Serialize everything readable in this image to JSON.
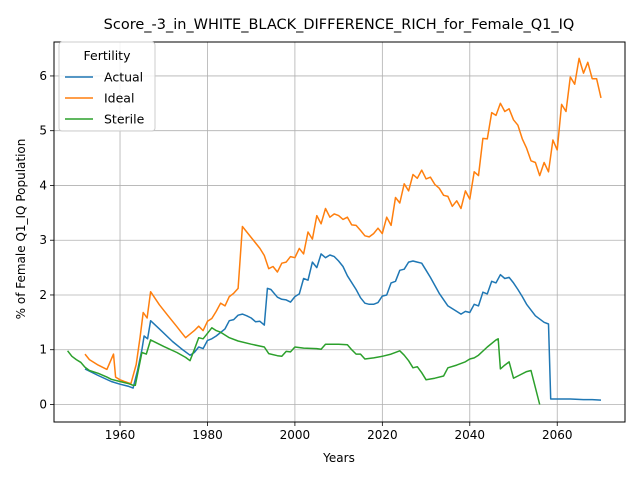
{
  "chart_data": {
    "type": "line",
    "title": "Score_-3_in_WHITE_BLACK_DIFFERENCE_RICH_for_Female_Q1_IQ",
    "xlabel": "Years",
    "ylabel": "% of Female Q1_IQ Population",
    "xlim": [
      1944.9,
      2075.5
    ],
    "ylim": [
      -0.32,
      6.62
    ],
    "xticks": [
      1960,
      1980,
      2000,
      2020,
      2040,
      2060
    ],
    "yticks": [
      0,
      1,
      2,
      3,
      4,
      5,
      6
    ],
    "grid": true,
    "legend": {
      "title": "Fertility",
      "position": "upper-left"
    },
    "series": [
      {
        "name": "Actual",
        "color": "#1f77b4",
        "points": [
          [
            1952,
            0.65
          ],
          [
            1955,
            0.53
          ],
          [
            1958,
            0.42
          ],
          [
            1960,
            0.37
          ],
          [
            1962,
            0.33
          ],
          [
            1963,
            0.3
          ],
          [
            1964,
            0.62
          ],
          [
            1965,
            1.0
          ],
          [
            1965.5,
            1.25
          ],
          [
            1966.3,
            1.2
          ],
          [
            1967,
            1.53
          ],
          [
            1969,
            1.38
          ],
          [
            1972,
            1.15
          ],
          [
            1974,
            1.02
          ],
          [
            1976,
            0.9
          ],
          [
            1977,
            0.95
          ],
          [
            1978,
            1.05
          ],
          [
            1979,
            1.02
          ],
          [
            1980,
            1.17
          ],
          [
            1981,
            1.2
          ],
          [
            1982,
            1.25
          ],
          [
            1984,
            1.38
          ],
          [
            1985,
            1.53
          ],
          [
            1986,
            1.55
          ],
          [
            1987,
            1.63
          ],
          [
            1988,
            1.65
          ],
          [
            1989,
            1.62
          ],
          [
            1990,
            1.58
          ],
          [
            1991,
            1.51
          ],
          [
            1992,
            1.52
          ],
          [
            1993,
            1.45
          ],
          [
            1993.7,
            2.12
          ],
          [
            1994.5,
            2.1
          ],
          [
            1996,
            1.96
          ],
          [
            1997,
            1.92
          ],
          [
            1998,
            1.91
          ],
          [
            1999,
            1.87
          ],
          [
            2000,
            1.97
          ],
          [
            2001,
            2.02
          ],
          [
            2002,
            2.3
          ],
          [
            2003,
            2.27
          ],
          [
            2004,
            2.6
          ],
          [
            2005,
            2.5
          ],
          [
            2006,
            2.75
          ],
          [
            2007,
            2.68
          ],
          [
            2008,
            2.73
          ],
          [
            2009,
            2.7
          ],
          [
            2010,
            2.62
          ],
          [
            2011,
            2.52
          ],
          [
            2012,
            2.35
          ],
          [
            2014,
            2.1
          ],
          [
            2015,
            1.95
          ],
          [
            2016,
            1.85
          ],
          [
            2017,
            1.83
          ],
          [
            2018,
            1.83
          ],
          [
            2019,
            1.86
          ],
          [
            2020,
            1.98
          ],
          [
            2021,
            2.0
          ],
          [
            2022,
            2.22
          ],
          [
            2023,
            2.25
          ],
          [
            2024,
            2.45
          ],
          [
            2025,
            2.47
          ],
          [
            2026,
            2.6
          ],
          [
            2027,
            2.62
          ],
          [
            2028,
            2.6
          ],
          [
            2029,
            2.58
          ],
          [
            2030,
            2.45
          ],
          [
            2031,
            2.32
          ],
          [
            2033,
            2.03
          ],
          [
            2035,
            1.8
          ],
          [
            2037,
            1.7
          ],
          [
            2038,
            1.65
          ],
          [
            2039,
            1.7
          ],
          [
            2040,
            1.68
          ],
          [
            2041,
            1.83
          ],
          [
            2042,
            1.8
          ],
          [
            2043,
            2.05
          ],
          [
            2044,
            2.02
          ],
          [
            2045,
            2.25
          ],
          [
            2046,
            2.22
          ],
          [
            2047,
            2.37
          ],
          [
            2048,
            2.3
          ],
          [
            2049,
            2.32
          ],
          [
            2050,
            2.22
          ],
          [
            2051,
            2.1
          ],
          [
            2052,
            1.97
          ],
          [
            2053,
            1.83
          ],
          [
            2055,
            1.62
          ],
          [
            2057,
            1.5
          ],
          [
            2058,
            1.47
          ],
          [
            2058.5,
            0.1
          ],
          [
            2060,
            0.1
          ],
          [
            2063,
            0.1
          ],
          [
            2066,
            0.09
          ],
          [
            2068,
            0.09
          ],
          [
            2070,
            0.08
          ]
        ]
      },
      {
        "name": "Ideal",
        "color": "#ff7f0e",
        "points": [
          [
            1952,
            0.92
          ],
          [
            1953,
            0.82
          ],
          [
            1955,
            0.72
          ],
          [
            1957,
            0.64
          ],
          [
            1958.5,
            0.92
          ],
          [
            1959,
            0.5
          ],
          [
            1960,
            0.45
          ],
          [
            1961,
            0.42
          ],
          [
            1962.5,
            0.38
          ],
          [
            1963.7,
            0.73
          ],
          [
            1964.6,
            1.23
          ],
          [
            1965.3,
            1.68
          ],
          [
            1966.2,
            1.58
          ],
          [
            1967,
            2.06
          ],
          [
            1969,
            1.82
          ],
          [
            1971,
            1.62
          ],
          [
            1973,
            1.42
          ],
          [
            1974,
            1.32
          ],
          [
            1975,
            1.22
          ],
          [
            1977,
            1.35
          ],
          [
            1978,
            1.43
          ],
          [
            1979,
            1.35
          ],
          [
            1980,
            1.52
          ],
          [
            1981,
            1.57
          ],
          [
            1982,
            1.7
          ],
          [
            1983,
            1.85
          ],
          [
            1984,
            1.8
          ],
          [
            1985,
            1.97
          ],
          [
            1986,
            2.03
          ],
          [
            1987,
            2.12
          ],
          [
            1988,
            3.25
          ],
          [
            1990,
            3.05
          ],
          [
            1992,
            2.85
          ],
          [
            1993,
            2.72
          ],
          [
            1994,
            2.48
          ],
          [
            1995,
            2.52
          ],
          [
            1996,
            2.42
          ],
          [
            1997,
            2.58
          ],
          [
            1998,
            2.6
          ],
          [
            1999,
            2.7
          ],
          [
            2000,
            2.68
          ],
          [
            2001,
            2.85
          ],
          [
            2002,
            2.75
          ],
          [
            2003,
            3.15
          ],
          [
            2004,
            3.02
          ],
          [
            2005,
            3.45
          ],
          [
            2006,
            3.3
          ],
          [
            2007,
            3.58
          ],
          [
            2008,
            3.42
          ],
          [
            2009,
            3.48
          ],
          [
            2010,
            3.45
          ],
          [
            2011,
            3.38
          ],
          [
            2012,
            3.42
          ],
          [
            2013,
            3.28
          ],
          [
            2014,
            3.27
          ],
          [
            2015,
            3.18
          ],
          [
            2016,
            3.08
          ],
          [
            2017,
            3.06
          ],
          [
            2018,
            3.12
          ],
          [
            2019,
            3.22
          ],
          [
            2020,
            3.12
          ],
          [
            2021,
            3.42
          ],
          [
            2022,
            3.27
          ],
          [
            2023,
            3.78
          ],
          [
            2024,
            3.68
          ],
          [
            2025,
            4.03
          ],
          [
            2026,
            3.9
          ],
          [
            2027,
            4.2
          ],
          [
            2028,
            4.13
          ],
          [
            2029,
            4.28
          ],
          [
            2030,
            4.12
          ],
          [
            2031,
            4.15
          ],
          [
            2032,
            4.02
          ],
          [
            2033,
            3.95
          ],
          [
            2034,
            3.82
          ],
          [
            2035,
            3.8
          ],
          [
            2036,
            3.62
          ],
          [
            2037,
            3.72
          ],
          [
            2038,
            3.58
          ],
          [
            2039,
            3.9
          ],
          [
            2040,
            3.75
          ],
          [
            2041,
            4.25
          ],
          [
            2042,
            4.18
          ],
          [
            2043,
            4.86
          ],
          [
            2044,
            4.85
          ],
          [
            2045,
            5.33
          ],
          [
            2046,
            5.28
          ],
          [
            2047,
            5.5
          ],
          [
            2048,
            5.35
          ],
          [
            2049,
            5.4
          ],
          [
            2050,
            5.2
          ],
          [
            2051,
            5.1
          ],
          [
            2052,
            4.85
          ],
          [
            2053,
            4.68
          ],
          [
            2054,
            4.45
          ],
          [
            2055,
            4.42
          ],
          [
            2056,
            4.18
          ],
          [
            2057,
            4.42
          ],
          [
            2058,
            4.25
          ],
          [
            2059,
            4.83
          ],
          [
            2060,
            4.65
          ],
          [
            2061,
            5.48
          ],
          [
            2062,
            5.35
          ],
          [
            2063,
            5.98
          ],
          [
            2064,
            5.85
          ],
          [
            2065,
            6.32
          ],
          [
            2066,
            6.05
          ],
          [
            2067,
            6.25
          ],
          [
            2068,
            5.95
          ],
          [
            2069,
            5.95
          ],
          [
            2070,
            5.6
          ]
        ]
      },
      {
        "name": "Sterile",
        "color": "#2ca02c",
        "points": [
          [
            1948,
            0.98
          ],
          [
            1949,
            0.88
          ],
          [
            1950,
            0.82
          ],
          [
            1951,
            0.77
          ],
          [
            1952,
            0.68
          ],
          [
            1953,
            0.62
          ],
          [
            1955,
            0.57
          ],
          [
            1957,
            0.5
          ],
          [
            1958,
            0.46
          ],
          [
            1960,
            0.42
          ],
          [
            1962,
            0.38
          ],
          [
            1963,
            0.35
          ],
          [
            1963.5,
            0.35
          ],
          [
            1965,
            0.95
          ],
          [
            1966,
            0.92
          ],
          [
            1967,
            1.18
          ],
          [
            1970,
            1.06
          ],
          [
            1973,
            0.95
          ],
          [
            1975,
            0.86
          ],
          [
            1976,
            0.8
          ],
          [
            1977,
            1.0
          ],
          [
            1978,
            1.22
          ],
          [
            1979,
            1.2
          ],
          [
            1980,
            1.3
          ],
          [
            1981,
            1.4
          ],
          [
            1982,
            1.35
          ],
          [
            1983,
            1.32
          ],
          [
            1985,
            1.22
          ],
          [
            1987,
            1.16
          ],
          [
            1990,
            1.1
          ],
          [
            1993,
            1.05
          ],
          [
            1994,
            0.93
          ],
          [
            1996,
            0.89
          ],
          [
            1997,
            0.88
          ],
          [
            1998,
            0.97
          ],
          [
            1999,
            0.96
          ],
          [
            2000,
            1.05
          ],
          [
            2002,
            1.03
          ],
          [
            2005,
            1.02
          ],
          [
            2006,
            1.01
          ],
          [
            2007,
            1.1
          ],
          [
            2010,
            1.1
          ],
          [
            2012,
            1.09
          ],
          [
            2013,
            1.0
          ],
          [
            2014,
            0.92
          ],
          [
            2015,
            0.92
          ],
          [
            2016,
            0.83
          ],
          [
            2018,
            0.85
          ],
          [
            2020,
            0.88
          ],
          [
            2022,
            0.92
          ],
          [
            2024,
            0.98
          ],
          [
            2025,
            0.9
          ],
          [
            2026,
            0.8
          ],
          [
            2027,
            0.67
          ],
          [
            2028,
            0.69
          ],
          [
            2029,
            0.58
          ],
          [
            2030,
            0.45
          ],
          [
            2032,
            0.48
          ],
          [
            2034,
            0.52
          ],
          [
            2035,
            0.67
          ],
          [
            2037,
            0.72
          ],
          [
            2039,
            0.78
          ],
          [
            2040,
            0.83
          ],
          [
            2041,
            0.85
          ],
          [
            2042,
            0.9
          ],
          [
            2044,
            1.05
          ],
          [
            2046,
            1.18
          ],
          [
            2046.5,
            1.2
          ],
          [
            2047,
            0.65
          ],
          [
            2048,
            0.72
          ],
          [
            2049,
            0.78
          ],
          [
            2050,
            0.48
          ],
          [
            2051,
            0.52
          ],
          [
            2053,
            0.6
          ],
          [
            2054,
            0.62
          ],
          [
            2056,
            0.0
          ]
        ]
      }
    ]
  }
}
